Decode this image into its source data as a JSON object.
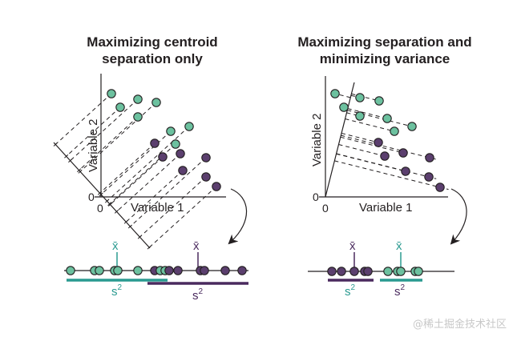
{
  "colors": {
    "teal_fill": "#6cc19f",
    "teal_line": "#2a9a90",
    "purple_fill": "#5b3f6e",
    "purple_line": "#4a2a5e",
    "ink": "#231f20"
  },
  "panels": [
    {
      "id": "left",
      "title_line1": "Maximizing centroid",
      "title_line2": "separation only",
      "x_axis_label": "Variable 1",
      "y_axis_label": "Variable 2",
      "x_zero": "0",
      "y_zero": "0",
      "projection_axis": "diagonal (perpendicular to class separation)",
      "projected_order": [
        "teal",
        "teal",
        "teal",
        "teal",
        "teal",
        "teal",
        "purple",
        "teal",
        "teal",
        "purple",
        "purple",
        "purple",
        "purple",
        "purple",
        "purple"
      ],
      "group1": {
        "color": "teal",
        "mean_label": "x̄",
        "variance_label": "s",
        "variance_exp": "2"
      },
      "group2": {
        "color": "purple",
        "mean_label": "x̄",
        "variance_label": "s",
        "variance_exp": "2"
      },
      "variance_overlap": true
    },
    {
      "id": "right",
      "title_line1": "Maximizing separation and",
      "title_line2": "minimizing variance",
      "x_axis_label": "Variable 1",
      "y_axis_label": "Variable 2",
      "x_zero": "0",
      "y_zero": "0",
      "projection_axis": "steep line through origin",
      "projected_order": [
        "purple",
        "purple",
        "purple",
        "purple",
        "purple",
        "teal",
        "teal",
        "teal",
        "teal",
        "teal"
      ],
      "group1": {
        "color": "purple",
        "mean_label": "x̄",
        "variance_label": "s",
        "variance_exp": "2",
        "variance_label_color": "teal"
      },
      "group2": {
        "color": "teal",
        "mean_label": "x̄",
        "variance_label": "s",
        "variance_exp": "2",
        "variance_label_color": "purple"
      },
      "variance_overlap": false
    }
  ],
  "watermark": "@稀土掘金技术社区"
}
